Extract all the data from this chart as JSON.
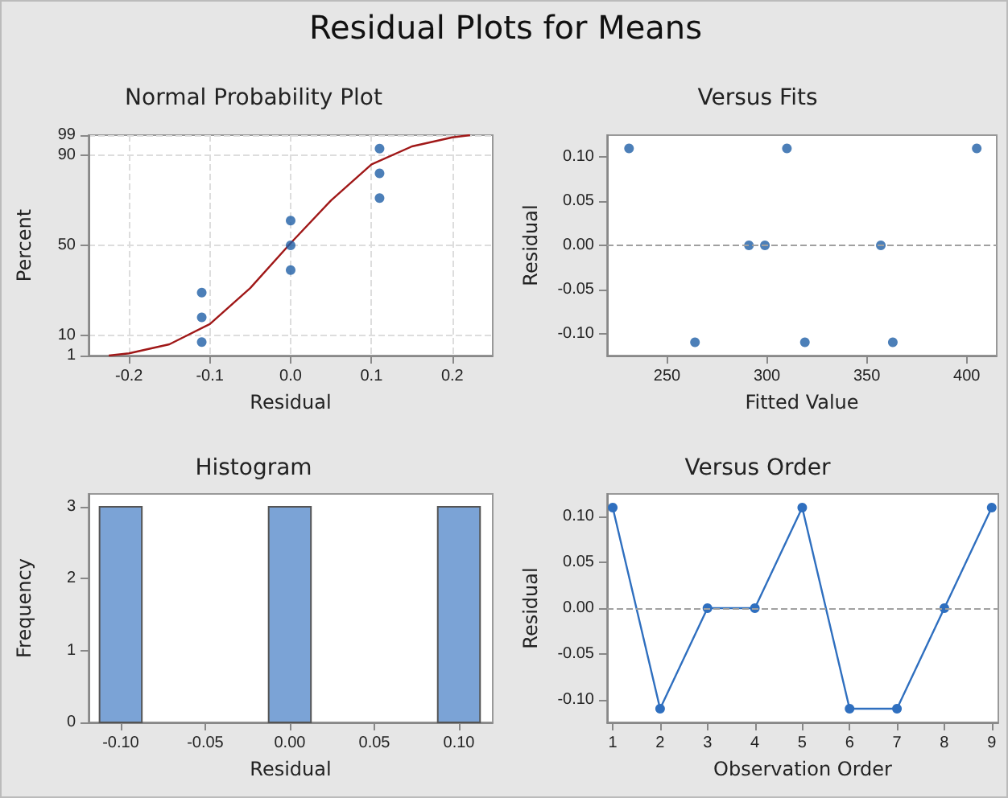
{
  "chart_data": [
    {
      "type": "scatter",
      "title": "Normal Probability Plot",
      "xlabel": "Residual",
      "ylabel": "Percent",
      "annotations": [
        "Residual Plots for Means"
      ],
      "xlim": [
        -0.25,
        0.25
      ],
      "xticks": [
        -0.2,
        -0.1,
        {
          "value": 0,
          "label": "0.0"
        },
        0.1,
        0.2
      ],
      "ylim": [
        1,
        99
      ],
      "yticks": [
        1,
        10,
        50,
        90,
        99
      ],
      "grid": true,
      "marker": "circle",
      "series": [
        {
          "color": "#1f5fa6",
          "x": [
            -0.11,
            -0.11,
            -0.11,
            0,
            0,
            0,
            0.11,
            0.11,
            0.11
          ],
          "values": [
            7,
            18,
            29,
            39,
            50,
            61,
            71,
            82,
            93
          ]
        },
        {
          "type": "line",
          "marker": "none",
          "color": "#a01818",
          "x": [
            -0.225,
            -0.2,
            -0.15,
            -0.1,
            -0.05,
            0,
            0.05,
            0.1,
            0.15,
            0.2,
            0.222
          ],
          "values": [
            1,
            2,
            6,
            15,
            31,
            51,
            70,
            86,
            94,
            98,
            99
          ]
        }
      ]
    },
    {
      "type": "scatter",
      "title": "Versus Fits",
      "xlabel": "Fitted Value",
      "ylabel": "Residual",
      "xlim": [
        220,
        415
      ],
      "xticks": [
        250,
        300,
        350,
        400
      ],
      "ylim": [
        -0.125,
        0.125
      ],
      "yticks": [
        {
          "value": -0.1,
          "label": "-0.10"
        },
        -0.05,
        {
          "value": 0,
          "label": "0.00"
        },
        0.05,
        {
          "value": 0.1,
          "label": "0.10"
        }
      ],
      "marker": "circle",
      "ref_lines": [
        {
          "axis": "y",
          "value": 0,
          "color": "#a0a0a0",
          "line_style": "dashed"
        }
      ],
      "series": [
        {
          "color": "#1f5fa6",
          "x": [
            231,
            264,
            291,
            299,
            310,
            319,
            357,
            363,
            405
          ],
          "values": [
            0.11,
            -0.11,
            0,
            0,
            0.11,
            -0.11,
            0,
            -0.11,
            0.11
          ]
        }
      ]
    },
    {
      "type": "histogram",
      "title": "Histogram",
      "xlabel": "Residual",
      "ylabel": "Frequency",
      "xlim": [
        -0.119,
        0.12
      ],
      "xticks": [
        {
          "value": -0.1,
          "label": "-0.10"
        },
        -0.05,
        {
          "value": 0,
          "label": "0.00"
        },
        0.05,
        {
          "value": 0.1,
          "label": "0.10"
        }
      ],
      "ylim": [
        0,
        3.18
      ],
      "yticks": [
        0,
        1,
        2,
        3
      ],
      "color": "#7ba3d6",
      "bins": [
        -0.1125,
        -0.0875,
        -0.0625,
        -0.0375,
        -0.0125,
        0.0125,
        0.0375,
        0.0625,
        0.0875,
        0.1125
      ],
      "values": [
        3,
        0,
        0,
        0,
        3,
        0,
        0,
        0,
        3
      ]
    },
    {
      "type": "line",
      "title": "Versus Order",
      "xlabel": "Observation Order",
      "ylabel": "Residual",
      "xlim": [
        0.88,
        9.14
      ],
      "xticks": [
        1,
        2,
        3,
        4,
        5,
        6,
        7,
        8,
        9
      ],
      "ylim": [
        -0.125,
        0.125
      ],
      "yticks": [
        {
          "value": -0.1,
          "label": "-0.10"
        },
        -0.05,
        {
          "value": 0,
          "label": "0.00"
        },
        0.05,
        {
          "value": 0.1,
          "label": "0.10"
        }
      ],
      "marker": "circle",
      "ref_lines": [
        {
          "axis": "y",
          "value": 0,
          "color": "#a0a0a0",
          "line_style": "dashed"
        }
      ],
      "series": [
        {
          "color": "#2f6fbf",
          "x": [
            1,
            2,
            3,
            4,
            5,
            6,
            7,
            8,
            9
          ],
          "values": [
            0.11,
            -0.11,
            0,
            0,
            0.11,
            -0.11,
            -0.11,
            0,
            0.11
          ]
        }
      ]
    }
  ]
}
